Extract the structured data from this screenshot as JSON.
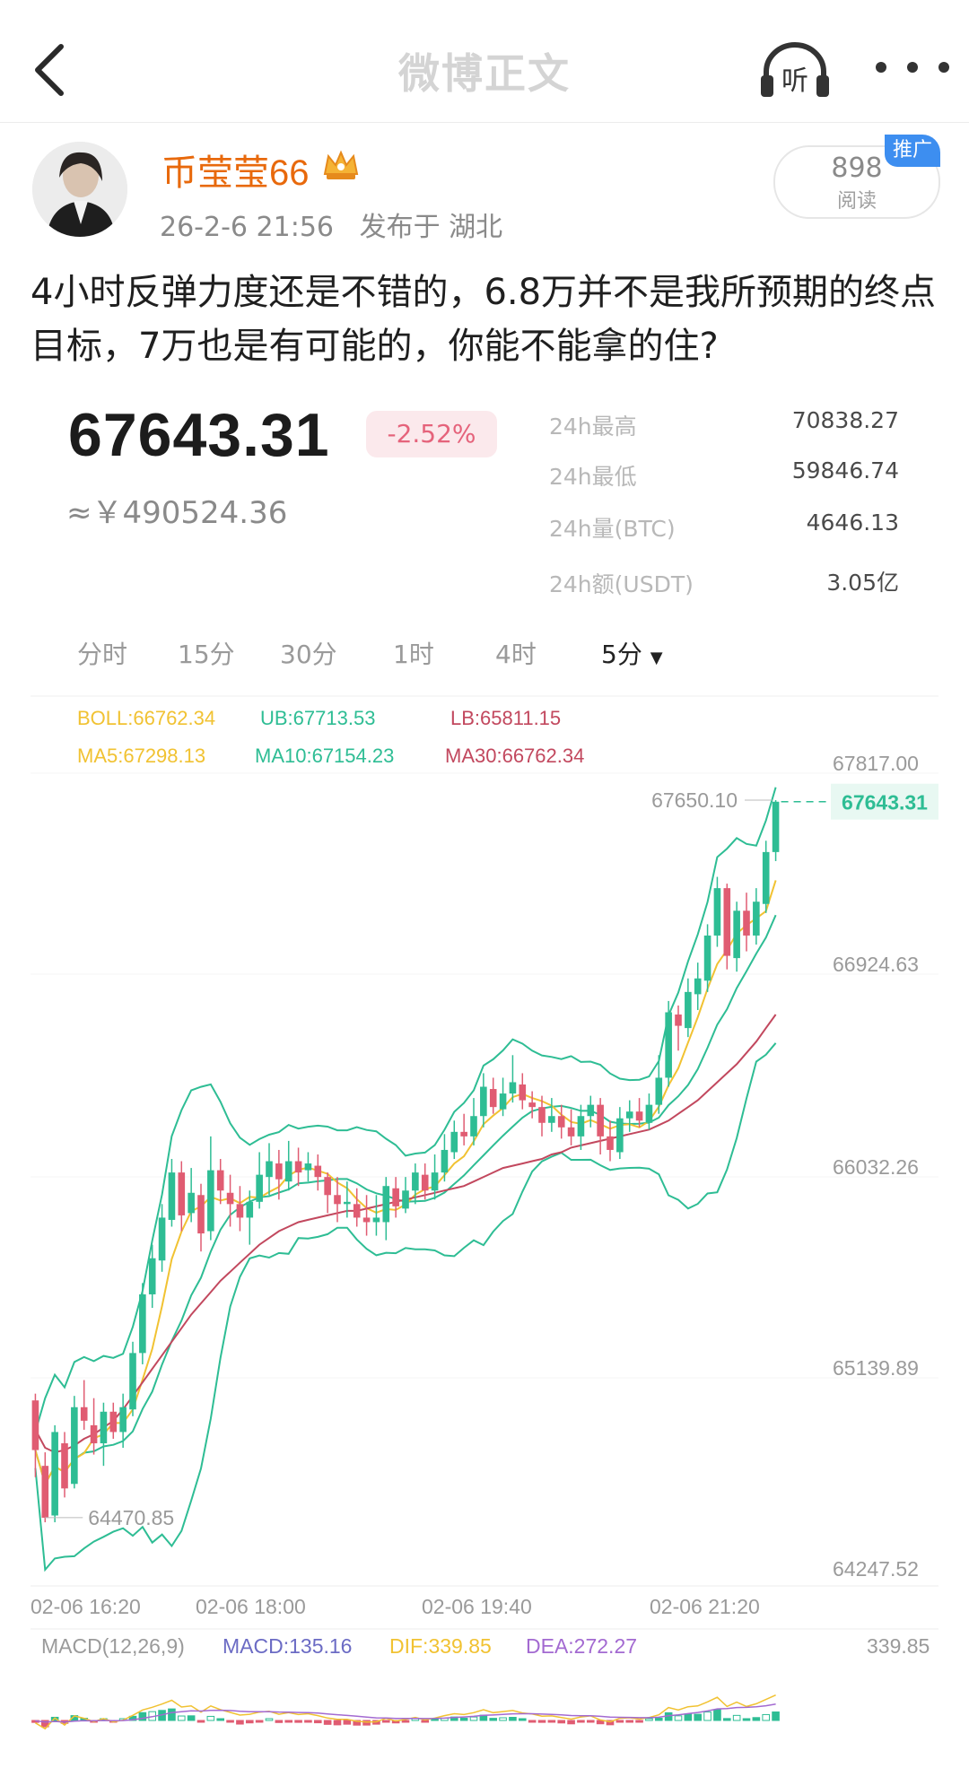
{
  "nav": {
    "title": "微博正文",
    "listen_label": "听",
    "back_icon": "back-arrow-icon",
    "more_icon": "more-dots-icon"
  },
  "post": {
    "author": "币莹莹66",
    "time": "26-2-6 21:56",
    "location": "发布于 湖北",
    "reads": "898",
    "reads_label": "阅读",
    "promo_badge": "推广",
    "text": "4小时反弹力度还是不错的，6.8万并不是我所预期的终点目标，7万也是有可能的，你能不能拿的住?"
  },
  "ticker": {
    "price": "67643.31",
    "change": "-2.52%",
    "cny": "≈￥490524.36",
    "stats": [
      {
        "label": "24h最高",
        "value": "70838.27"
      },
      {
        "label": "24h最低",
        "value": "59846.74"
      },
      {
        "label": "24h量(BTC)",
        "value": "4646.13"
      },
      {
        "label": "24h额(USDT)",
        "value": "3.05亿"
      }
    ]
  },
  "intervals": [
    "分时",
    "15分",
    "30分",
    "1时",
    "4时",
    "5分"
  ],
  "active_interval": "5分",
  "colors": {
    "up": "#2ebd94",
    "down": "#e05c72",
    "ma5": "#f1c232",
    "ma10": "#2ebd94",
    "ma30": "#c2485e",
    "boll_ma": "#f1c232",
    "macd": "#6b6bc4",
    "dif": "#f1c232",
    "dea": "#a36ad1"
  },
  "indicators": {
    "boll": "BOLL:66762.34",
    "ub": "UB:67713.53",
    "lb": "LB:65811.15",
    "ma5": "MA5:67298.13",
    "ma10": "MA10:67154.23",
    "ma30": "MA30:66762.34",
    "macd_title": "MACD(12,26,9)",
    "macd": "MACD:135.16",
    "dif": "DIF:339.85",
    "dea": "DEA:272.27",
    "macd_axis_top": "339.85"
  },
  "chart_data": {
    "type": "candlestick",
    "y_ticks": [
      "67817.00",
      "66924.63",
      "66032.26",
      "65139.89",
      "64247.52"
    ],
    "ylim": [
      64247.52,
      67817.0
    ],
    "x_ticks": [
      "02-06 16:20",
      "02-06 18:00",
      "02-06 19:40",
      "02-06 21:20"
    ],
    "high_label": "67650.10",
    "low_label": "64470.85",
    "last_price_label": "67643.31",
    "candles": [
      [
        64990,
        64770,
        65020,
        64650
      ],
      [
        64700,
        64470,
        64760,
        64450
      ],
      [
        64480,
        64850,
        64880,
        64450
      ],
      [
        64800,
        64600,
        64850,
        64560
      ],
      [
        64620,
        64960,
        65010,
        64600
      ],
      [
        64960,
        64900,
        65080,
        64860
      ],
      [
        64880,
        64800,
        65000,
        64750
      ],
      [
        64800,
        64940,
        64980,
        64700
      ],
      [
        64940,
        64850,
        64980,
        64820
      ],
      [
        64850,
        64960,
        65020,
        64780
      ],
      [
        64950,
        65200,
        65250,
        64920
      ],
      [
        65200,
        65460,
        65510,
        65150
      ],
      [
        65460,
        65620,
        65680,
        65400
      ],
      [
        65610,
        65800,
        65860,
        65560
      ],
      [
        65790,
        66000,
        66060,
        65760
      ],
      [
        66000,
        65810,
        66050,
        65740
      ],
      [
        65820,
        65910,
        66020,
        65780
      ],
      [
        65900,
        65730,
        65950,
        65650
      ],
      [
        65740,
        66010,
        66160,
        65700
      ],
      [
        66010,
        65920,
        66060,
        65860
      ],
      [
        65910,
        65860,
        65990,
        65760
      ],
      [
        65860,
        65800,
        65940,
        65740
      ],
      [
        65800,
        65870,
        65920,
        65680
      ],
      [
        65870,
        65990,
        66090,
        65840
      ],
      [
        65980,
        66050,
        66130,
        65900
      ],
      [
        66040,
        65970,
        66100,
        65880
      ],
      [
        65960,
        66050,
        66140,
        65920
      ],
      [
        66050,
        66000,
        66110,
        65940
      ],
      [
        66010,
        66040,
        66090,
        65960
      ],
      [
        66030,
        65980,
        66080,
        65920
      ],
      [
        65980,
        65900,
        66000,
        65820
      ],
      [
        65900,
        65860,
        65980,
        65780
      ],
      [
        65860,
        65870,
        65960,
        65800
      ],
      [
        65860,
        65800,
        65930,
        65760
      ],
      [
        65800,
        65780,
        65900,
        65720
      ],
      [
        65780,
        65800,
        65900,
        65720
      ],
      [
        65780,
        65940,
        65980,
        65700
      ],
      [
        65930,
        65850,
        65980,
        65800
      ],
      [
        65840,
        65920,
        65980,
        65820
      ],
      [
        65920,
        66000,
        66040,
        65860
      ],
      [
        65990,
        65920,
        66040,
        65880
      ],
      [
        65920,
        66000,
        66080,
        65880
      ],
      [
        66000,
        66100,
        66170,
        65960
      ],
      [
        66090,
        66180,
        66230,
        66060
      ],
      [
        66180,
        66160,
        66260,
        66120
      ],
      [
        66160,
        66250,
        66330,
        66120
      ],
      [
        66250,
        66380,
        66440,
        66200
      ],
      [
        66370,
        66290,
        66420,
        66260
      ],
      [
        66280,
        66350,
        66420,
        66250
      ],
      [
        66350,
        66400,
        66520,
        66310
      ],
      [
        66390,
        66320,
        66440,
        66280
      ],
      [
        66310,
        66290,
        66360,
        66240
      ],
      [
        66290,
        66220,
        66340,
        66160
      ],
      [
        66220,
        66250,
        66330,
        66180
      ],
      [
        66250,
        66200,
        66300,
        66150
      ],
      [
        66200,
        66160,
        66280,
        66120
      ],
      [
        66160,
        66250,
        66300,
        66100
      ],
      [
        66250,
        66300,
        66340,
        66200
      ],
      [
        66300,
        66160,
        66330,
        66080
      ],
      [
        66160,
        66100,
        66230,
        66050
      ],
      [
        66090,
        66240,
        66290,
        66060
      ],
      [
        66240,
        66270,
        66320,
        66180
      ],
      [
        66270,
        66230,
        66330,
        66200
      ],
      [
        66220,
        66300,
        66350,
        66190
      ],
      [
        66300,
        66420,
        66520,
        66260
      ],
      [
        66420,
        66710,
        66760,
        66380
      ],
      [
        66700,
        66650,
        66740,
        66540
      ],
      [
        66640,
        66800,
        66860,
        66600
      ],
      [
        66790,
        66860,
        66930,
        66720
      ],
      [
        66850,
        67050,
        67100,
        66800
      ],
      [
        67050,
        67260,
        67310,
        67000
      ],
      [
        67260,
        66960,
        67280,
        66900
      ],
      [
        66950,
        67160,
        67200,
        66890
      ],
      [
        67160,
        67050,
        67240,
        66980
      ],
      [
        67050,
        67200,
        67260,
        67010
      ],
      [
        67190,
        67420,
        67470,
        67150
      ],
      [
        67420,
        67643,
        67650,
        67380
      ]
    ],
    "series": [
      {
        "name": "MA30",
        "values": [
          64860,
          64780,
          64760,
          64770,
          64790,
          64820,
          64840,
          64870,
          64900,
          64950,
          65010,
          65070,
          65130,
          65190,
          65250,
          65310,
          65370,
          65420,
          65470,
          65520,
          65560,
          65600,
          65640,
          65680,
          65710,
          65740,
          65760,
          65780,
          65790,
          65800,
          65810,
          65820,
          65830,
          65830,
          65840,
          65850,
          65860,
          65870,
          65880,
          65890,
          65900,
          65910,
          65920,
          65930,
          65940,
          65960,
          65980,
          66000,
          66020,
          66030,
          66040,
          66050,
          66060,
          66080,
          66090,
          66110,
          66120,
          66130,
          66140,
          66150,
          66160,
          66170,
          66180,
          66190,
          66210,
          66230,
          66260,
          66290,
          66320,
          66360,
          66400,
          66440,
          66480,
          66530,
          66580,
          66640,
          66700
        ]
      }
    ]
  }
}
